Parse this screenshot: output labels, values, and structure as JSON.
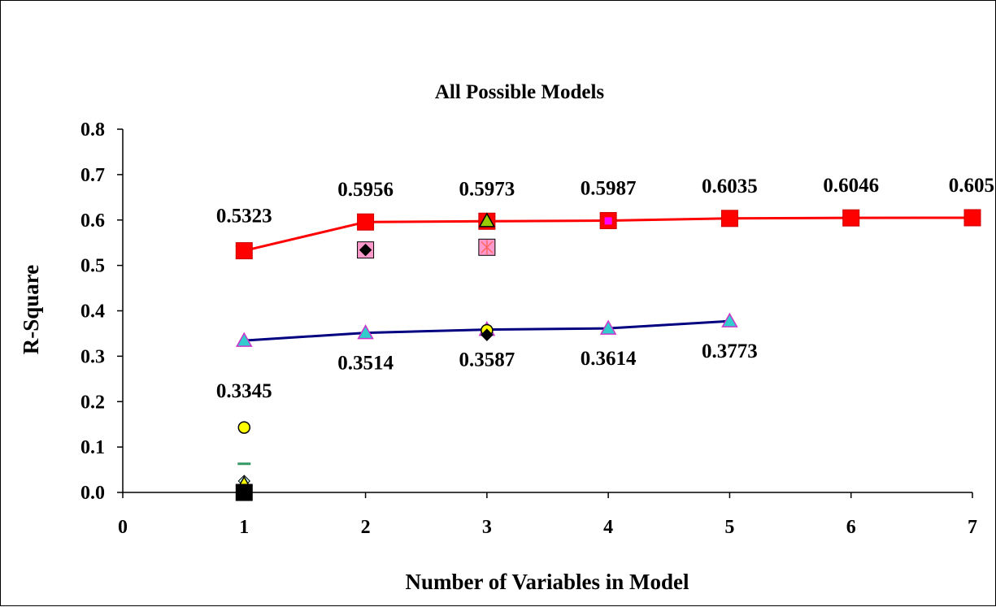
{
  "chart_data": {
    "type": "scatter",
    "title": "All Possible Models",
    "xlabel": "Number of Variables in Model",
    "ylabel": "R-Square",
    "xlim": [
      0,
      7
    ],
    "ylim": [
      0,
      0.8
    ],
    "x_ticks": [
      "0",
      "1",
      "2",
      "3",
      "4",
      "5",
      "6",
      "7"
    ],
    "y_ticks": [
      "0.0",
      "0.1",
      "0.2",
      "0.3",
      "0.4",
      "0.5",
      "0.6",
      "0.7",
      "0.8"
    ],
    "grid": false,
    "legend": "none",
    "lines": [
      {
        "color": "#ff0000",
        "marker": "square",
        "x": [
          1,
          2,
          3,
          4,
          5,
          6,
          7
        ],
        "y": [
          0.5323,
          0.5956,
          0.5973,
          0.5987,
          0.6035,
          0.6046,
          0.605
        ],
        "labels": [
          "0.5323",
          "0.5956",
          "0.5973",
          "0.5987",
          "0.6035",
          "0.6046",
          "0.605"
        ],
        "label_position": "above"
      },
      {
        "color": "#000080",
        "marker": "triangle",
        "marker_fill": "#33cccc",
        "marker_stroke": "#cc33cc",
        "x": [
          1,
          2,
          3,
          4,
          5
        ],
        "y": [
          0.3345,
          0.3514,
          0.3587,
          0.3614,
          0.3773
        ],
        "labels": [
          "0.3345",
          "0.3514",
          "0.3587",
          "0.3614",
          "0.3773"
        ],
        "label_position": "below"
      }
    ],
    "points": [
      {
        "x": 1,
        "y": 0.143,
        "marker": "circle",
        "color": "#ffff00"
      },
      {
        "x": 1,
        "y": 0.063,
        "marker": "dash",
        "color": "#339966"
      },
      {
        "x": 1,
        "y": 0.025,
        "marker": "diamond",
        "color": "#ccffff"
      },
      {
        "x": 1,
        "y": 0.018,
        "marker": "triangle",
        "color": "#ffff00"
      },
      {
        "x": 1,
        "y": 0.0,
        "marker": "square",
        "color": "#000000"
      },
      {
        "x": 2,
        "y": 0.534,
        "marker": "square",
        "color": "#ff99cc"
      },
      {
        "x": 2,
        "y": 0.534,
        "marker": "diamond",
        "color": "#000000"
      },
      {
        "x": 3,
        "y": 0.54,
        "marker": "square",
        "color": "#ff99cc"
      },
      {
        "x": 3,
        "y": 0.54,
        "marker": "star",
        "color": "#ff6666"
      },
      {
        "x": 3,
        "y": 0.598,
        "marker": "triangle",
        "color": "#99cc00"
      },
      {
        "x": 3,
        "y": 0.357,
        "marker": "circle",
        "color": "#ffff00"
      },
      {
        "x": 3,
        "y": 0.347,
        "marker": "diamond",
        "color": "#000000"
      },
      {
        "x": 4,
        "y": 0.598,
        "marker": "square-small",
        "color": "#ff00ff"
      }
    ]
  }
}
